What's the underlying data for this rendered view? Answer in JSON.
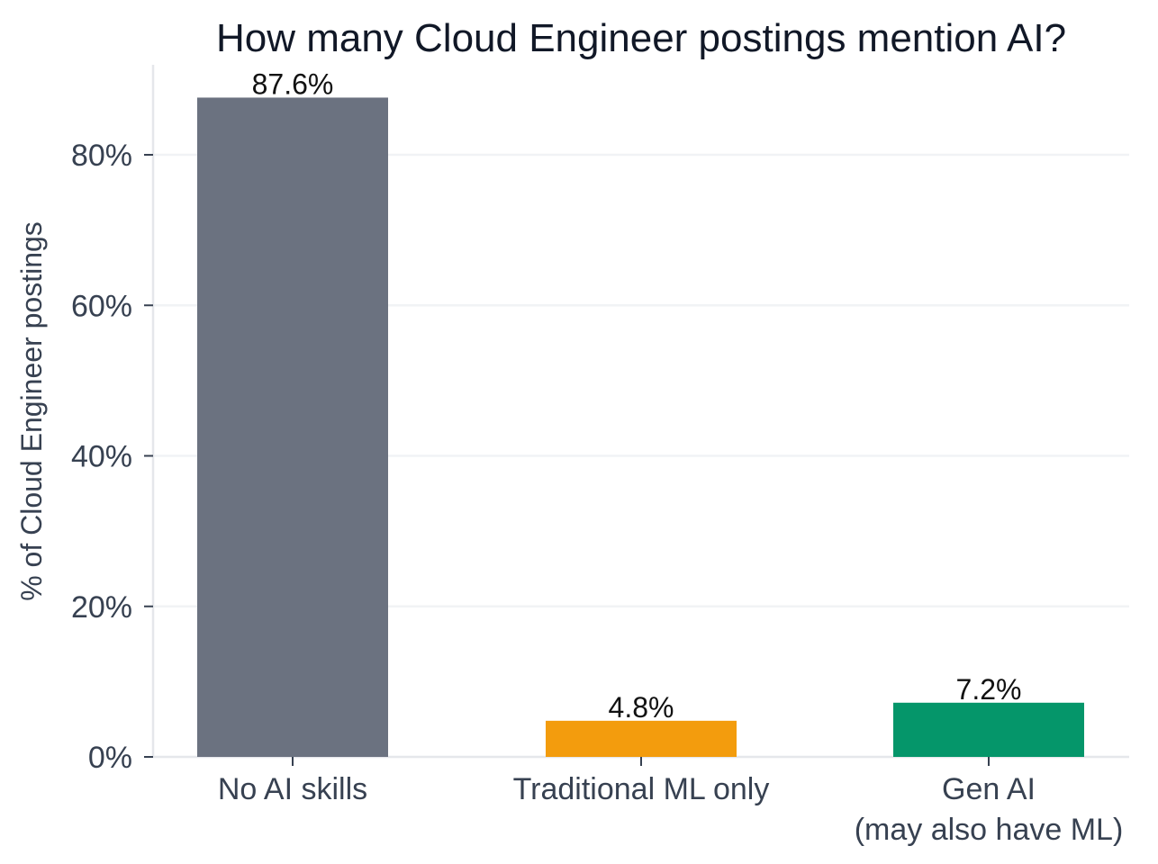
{
  "chart_data": {
    "type": "bar",
    "title": "How many Cloud Engineer postings mention AI?",
    "xlabel": "",
    "ylabel": "% of Cloud Engineer postings",
    "ylim": [
      0,
      92
    ],
    "yticks": [
      "0%",
      "20%",
      "40%",
      "60%",
      "80%"
    ],
    "ytick_values": [
      0,
      20,
      40,
      60,
      80
    ],
    "categories": [
      "No AI skills",
      "Traditional ML only",
      "Gen AI (may also have ML)"
    ],
    "category_lines": [
      [
        "No AI skills"
      ],
      [
        "Traditional ML only"
      ],
      [
        "Gen AI",
        "(may also have ML)"
      ]
    ],
    "values": [
      87.6,
      4.8,
      7.2
    ],
    "value_labels": [
      "87.6%",
      "4.8%",
      "7.2%"
    ],
    "colors": [
      "#6b7280",
      "#f39c0d",
      "#05966a"
    ],
    "grid": true,
    "legend": false
  }
}
